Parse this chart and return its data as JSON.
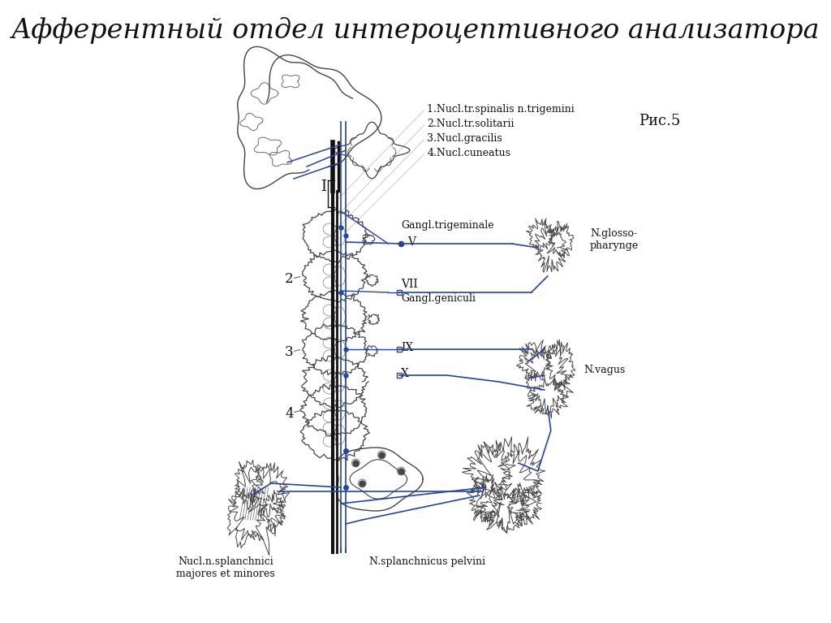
{
  "title": "Афферентный отдел интероцептивного анализатора",
  "title_fontsize": 24,
  "fig_caption": "Рис.5",
  "background_color": "#ffffff",
  "line_color": "#2244aa",
  "sketch_color": "#444444",
  "legend_lines": [
    "1.Nucl.tr.spinalis n.trigemini",
    "2.Nucl.tr.solitarii",
    "3.Nucl.gracilis",
    "4.Nucl.cuneatus"
  ],
  "labels": {
    "gangl_trig": "Gangl.trigeminale",
    "V": "V",
    "VII": "VII",
    "gangl_gen": "Gangl.geniculi",
    "IX": "IX",
    "X": "X",
    "n_glosso": "N.glosso-\npharynge",
    "n_vagus": "N.vagus",
    "nucl_splanchn": "Nucl.n.splanchnici\nmajores et minores",
    "n_splanchn_pelv": "N.splanchnicus pelvini",
    "num2": "2",
    "num3": "3",
    "num4": "4",
    "numI": "I"
  }
}
